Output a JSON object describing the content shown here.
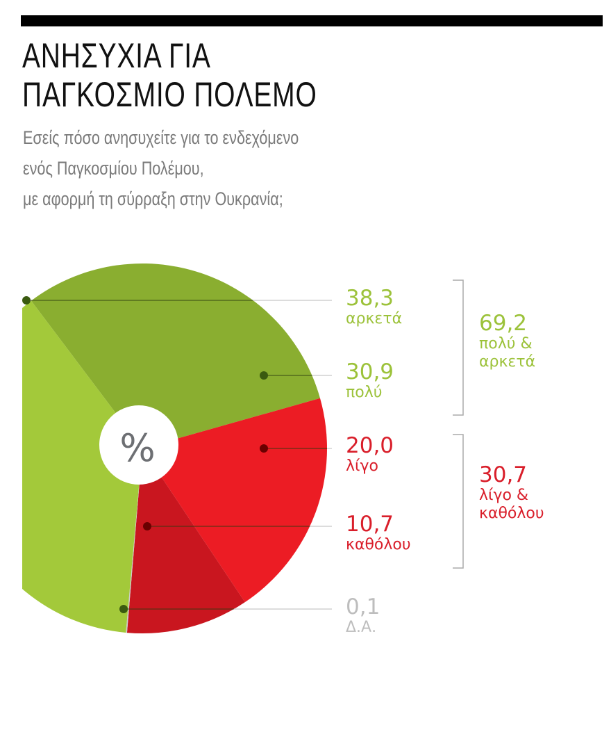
{
  "chart_data": {
    "type": "pie",
    "title": "ΑΝΗΣΥΧΙΑ ΓΙΑ ΠΑΓΚΟΣΜΙΟ ΠΟΛΕΜΟ",
    "title_lines": [
      "ΑΝΗΣΥΧΙΑ ΓΙΑ",
      "ΠΑΓΚΟΣΜΙΟ ΠΟΛΕΜΟ"
    ],
    "subtitle_lines": [
      "Εσείς πόσο ανησυχείτε για το ενδεχόμενο",
      "ενός Παγκοσμίου Πολέμου,",
      "με αφορμή τη σύρραξη στην Ουκρανία;"
    ],
    "center_label": "%",
    "slices": [
      {
        "label": "πολύ",
        "value": 30.9,
        "value_text": "30,9",
        "color": "#8aae30"
      },
      {
        "label": "λίγο",
        "value": 20.0,
        "value_text": "20,0",
        "color": "#ec1c24"
      },
      {
        "label": "καθόλου",
        "value": 10.7,
        "value_text": "10,7",
        "color": "#c9161f"
      },
      {
        "label": "Δ.Α.",
        "value": 0.1,
        "value_text": "0,1",
        "color": "#cccccc"
      },
      {
        "label": "αρκετά",
        "value": 38.3,
        "value_text": "38,3",
        "color": "#a3c93a"
      }
    ],
    "groups": [
      {
        "value": 69.2,
        "value_text": "69,2",
        "label_lines": [
          "πολύ &",
          "αρκετά"
        ],
        "color": "#9cc23a"
      },
      {
        "value": 30.7,
        "value_text": "30,7",
        "label_lines": [
          "λίγο &",
          "καθόλου"
        ],
        "color": "#d91e2a"
      }
    ],
    "legend_placement": "right"
  }
}
